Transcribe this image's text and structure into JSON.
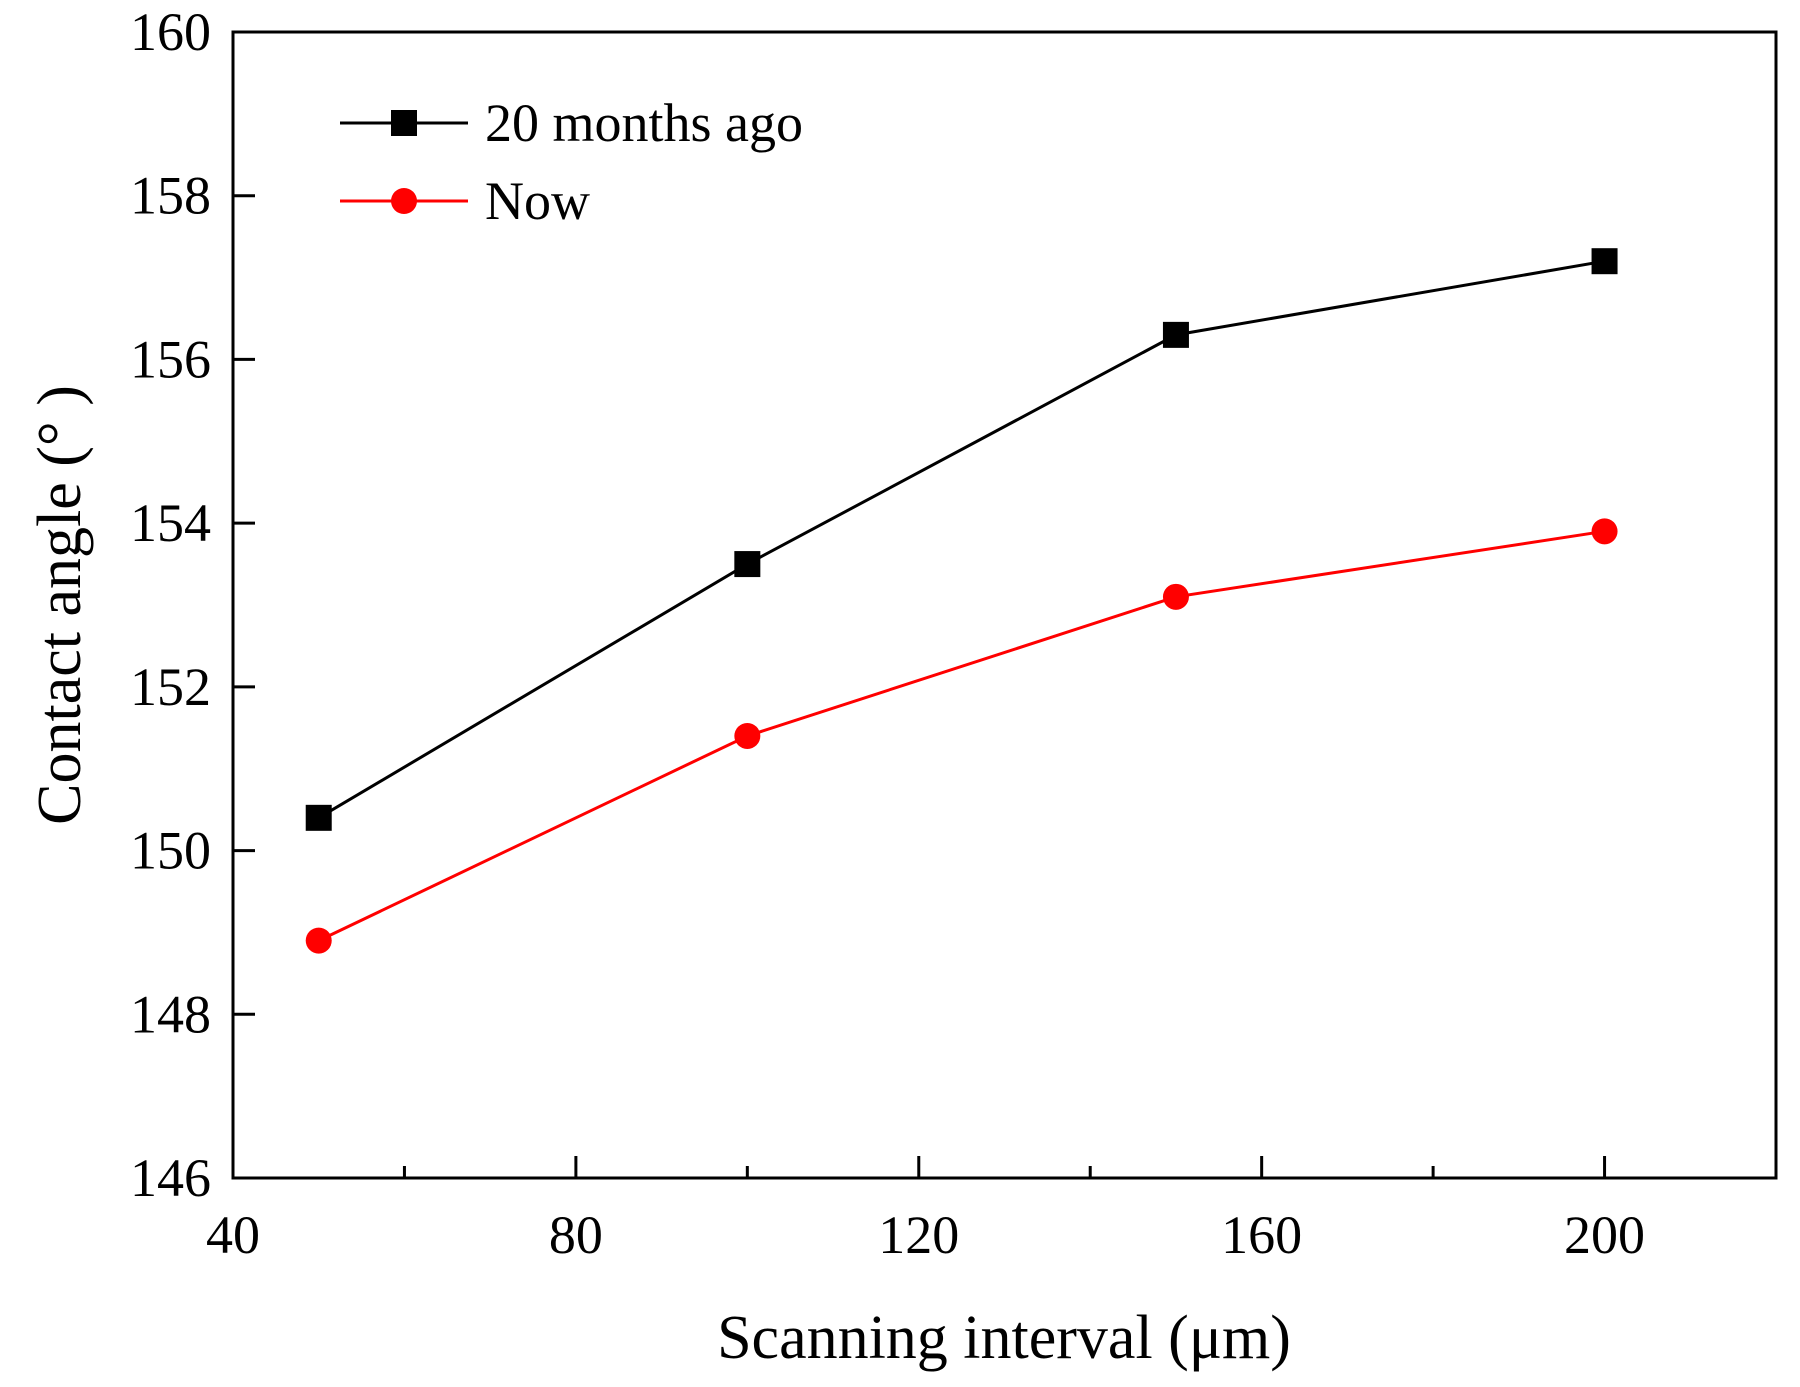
{
  "chart_data": {
    "type": "line",
    "title": "",
    "xlabel": "Scanning interval (μm)",
    "ylabel": "Contact angle (° )",
    "xlim": [
      40,
      220
    ],
    "ylim": [
      146,
      160
    ],
    "x_ticks": [
      40,
      80,
      120,
      160,
      200
    ],
    "x_minor_ticks": [
      60,
      100,
      140,
      180
    ],
    "y_ticks": [
      146,
      148,
      150,
      152,
      154,
      156,
      158,
      160
    ],
    "x_tick_labels": [
      "40",
      "80",
      "120",
      "160",
      "200"
    ],
    "y_tick_labels": [
      "146",
      "148",
      "150",
      "152",
      "154",
      "156",
      "158",
      "160"
    ],
    "grid": false,
    "legend_position": "top-left",
    "x": [
      50,
      100,
      150,
      200
    ],
    "series": [
      {
        "name": "20 months ago",
        "marker": "square",
        "color": "#000000",
        "values": [
          150.4,
          153.5,
          156.3,
          157.2
        ]
      },
      {
        "name": "Now",
        "marker": "circle",
        "color": "#ff0000",
        "values": [
          148.9,
          151.4,
          153.1,
          153.9
        ]
      }
    ]
  }
}
